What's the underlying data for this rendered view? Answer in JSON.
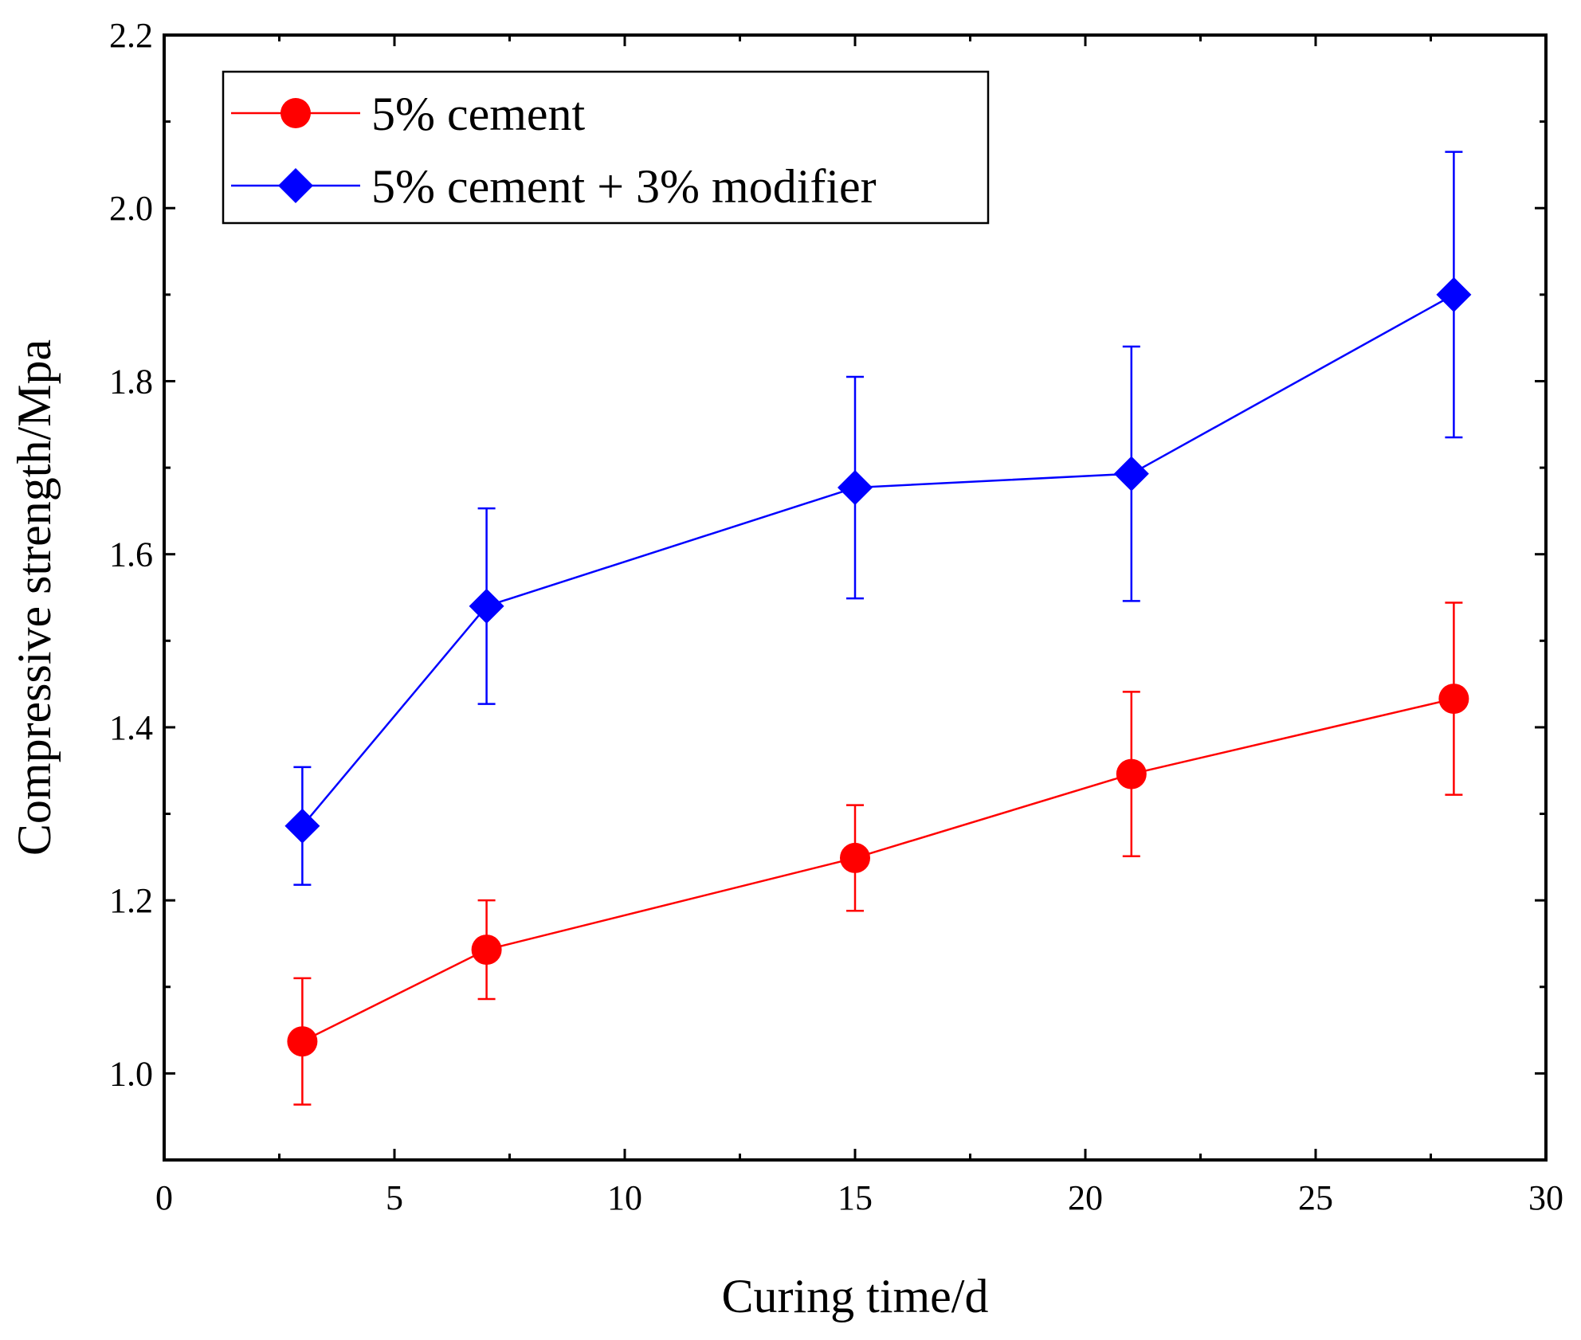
{
  "chart_data": {
    "type": "line",
    "xlabel": "Curing time/d",
    "ylabel": "Compressive strength/Mpa",
    "xlim": [
      0,
      30
    ],
    "ylim": [
      0.9,
      2.2
    ],
    "xticks": [
      0,
      5,
      10,
      15,
      20,
      25,
      30
    ],
    "xtick_labels": [
      "0",
      "5",
      "10",
      "15",
      "20",
      "25",
      "30"
    ],
    "yticks": [
      1.0,
      1.2,
      1.4,
      1.6,
      1.8,
      2.0,
      2.2
    ],
    "ytick_labels": [
      "1.0",
      "1.2",
      "1.4",
      "1.6",
      "1.8",
      "2.0",
      "2.2"
    ],
    "x_minor_step": 2.5,
    "y_minor_step": 0.1,
    "grid": false,
    "legend_position": "top-left",
    "series": [
      {
        "name": "5% cement",
        "color": "#ff0000",
        "marker": "circle",
        "x": [
          3,
          7,
          15,
          21,
          28
        ],
        "y": [
          1.037,
          1.143,
          1.249,
          1.346,
          1.433
        ],
        "error": [
          0.073,
          0.057,
          0.061,
          0.095,
          0.111
        ]
      },
      {
        "name": "5% cement + 3% modifier",
        "color": "#0000ff",
        "marker": "diamond",
        "x": [
          3,
          7,
          15,
          21,
          28
        ],
        "y": [
          1.286,
          1.54,
          1.677,
          1.693,
          1.9
        ],
        "error": [
          0.068,
          0.113,
          0.128,
          0.147,
          0.165
        ]
      }
    ]
  }
}
